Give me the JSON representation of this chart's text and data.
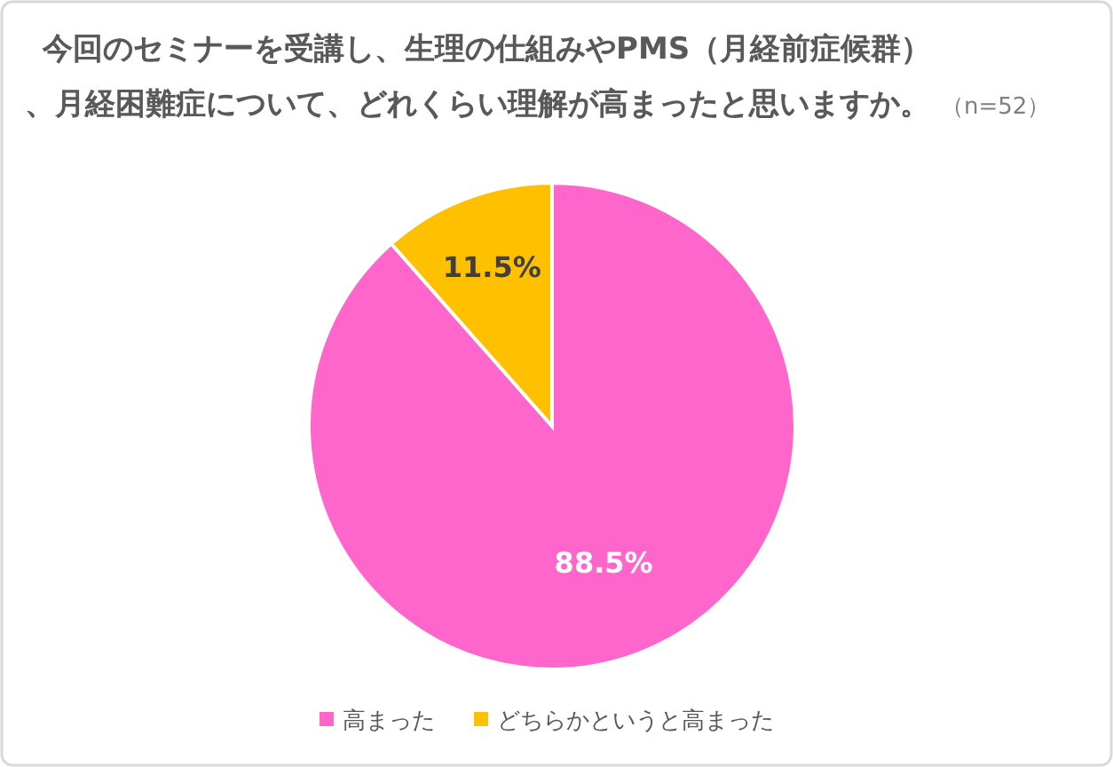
{
  "chart_data": {
    "type": "pie",
    "title": "今回のセミナーを受講し、生理の仕組みやPMS（月経前症候群）、月経困難症について、どれくらい理解が高まったと思いますか。",
    "subtitle": "（n=52）",
    "categories": [
      "高まった",
      "どちらかというと高まった"
    ],
    "values": [
      88.5,
      11.5
    ],
    "colors": [
      "#ff66cc",
      "#ffc000"
    ],
    "value_labels": [
      "88.5%",
      "11.5%"
    ],
    "legend": "bottom"
  }
}
